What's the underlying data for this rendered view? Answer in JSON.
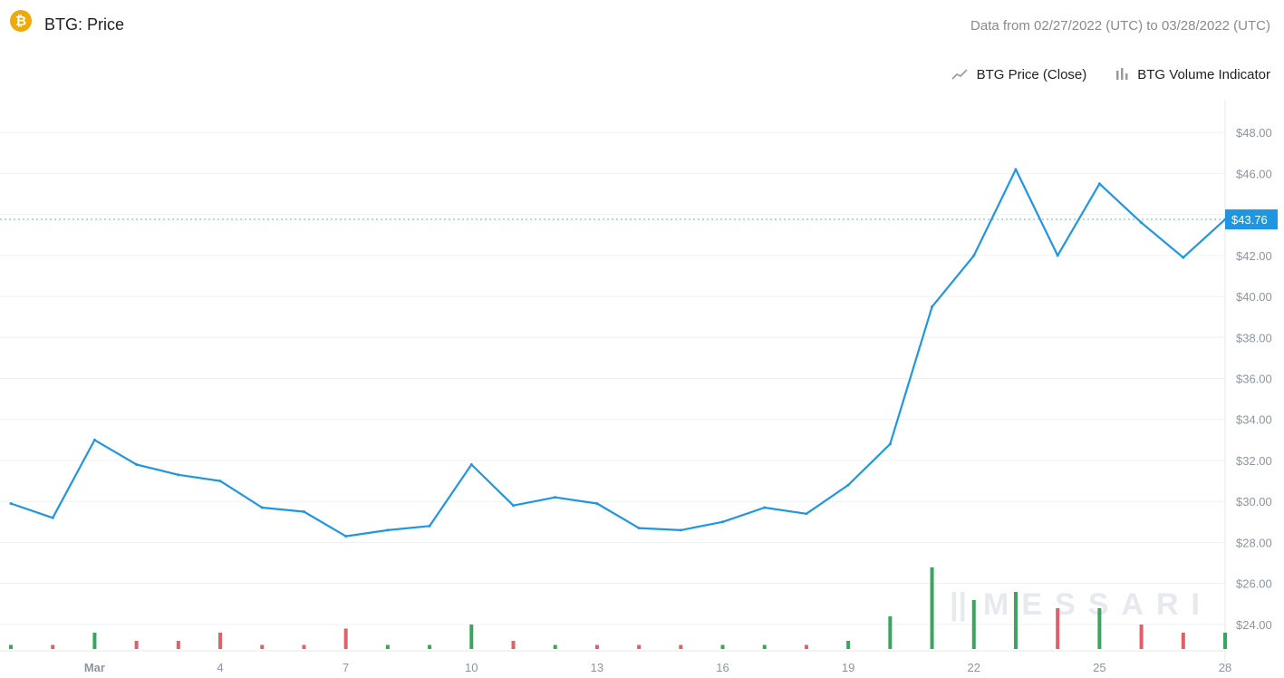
{
  "header": {
    "logo_icon": "bitcoin-gold-icon",
    "logo_glyph": "₿",
    "title": "BTG: Price",
    "date_range": "Data from 02/27/2022 (UTC) to 03/28/2022 (UTC)"
  },
  "legend": {
    "price_icon": "line-chart-icon",
    "price_label": "BTG Price (Close)",
    "volume_icon": "bar-chart-icon",
    "volume_label": "BTG Volume Indicator"
  },
  "watermark": {
    "mark": "||",
    "text": "MESSARI"
  },
  "colors": {
    "price_line": "#2196e0",
    "up_volume": "#3aa55d",
    "down_volume": "#e0606a",
    "grid": "#eef1f4",
    "axis_text": "#8b95a1"
  },
  "chart_data": {
    "type": "line",
    "title": "BTG: Price",
    "series": [
      {
        "name": "BTG Price (Close)",
        "x": [
          "2022-02-27",
          "2022-02-28",
          "2022-03-01",
          "2022-03-02",
          "2022-03-03",
          "2022-03-04",
          "2022-03-05",
          "2022-03-06",
          "2022-03-07",
          "2022-03-08",
          "2022-03-09",
          "2022-03-10",
          "2022-03-11",
          "2022-03-12",
          "2022-03-13",
          "2022-03-14",
          "2022-03-15",
          "2022-03-16",
          "2022-03-17",
          "2022-03-18",
          "2022-03-19",
          "2022-03-20",
          "2022-03-21",
          "2022-03-22",
          "2022-03-23",
          "2022-03-24",
          "2022-03-25",
          "2022-03-26",
          "2022-03-27",
          "2022-03-28"
        ],
        "values": [
          29.9,
          29.2,
          33.0,
          31.8,
          31.3,
          31.0,
          29.7,
          29.5,
          28.3,
          28.6,
          28.8,
          31.8,
          29.8,
          30.2,
          29.9,
          28.7,
          28.6,
          29.0,
          29.7,
          29.4,
          30.8,
          32.8,
          39.5,
          42.0,
          46.2,
          42.0,
          45.5,
          43.6,
          41.9,
          43.76
        ]
      },
      {
        "name": "BTG Volume Indicator",
        "x": [
          "2022-02-27",
          "2022-02-28",
          "2022-03-01",
          "2022-03-02",
          "2022-03-03",
          "2022-03-04",
          "2022-03-05",
          "2022-03-06",
          "2022-03-07",
          "2022-03-08",
          "2022-03-09",
          "2022-03-10",
          "2022-03-11",
          "2022-03-12",
          "2022-03-13",
          "2022-03-14",
          "2022-03-15",
          "2022-03-16",
          "2022-03-17",
          "2022-03-18",
          "2022-03-19",
          "2022-03-20",
          "2022-03-21",
          "2022-03-22",
          "2022-03-23",
          "2022-03-24",
          "2022-03-25",
          "2022-03-26",
          "2022-03-27",
          "2022-03-28"
        ],
        "values": [
          0.05,
          0.05,
          0.2,
          0.1,
          0.1,
          0.2,
          0.05,
          0.05,
          0.25,
          0.05,
          0.05,
          0.3,
          0.1,
          0.05,
          0.05,
          0.05,
          0.05,
          0.05,
          0.05,
          0.05,
          0.1,
          0.4,
          1.0,
          0.6,
          0.7,
          0.5,
          0.5,
          0.3,
          0.2,
          0.2
        ]
      }
    ],
    "last_price_label": "$43.76",
    "last_price": 43.76,
    "xtick_labels": [
      "Mar",
      "4",
      "7",
      "10",
      "13",
      "16",
      "19",
      "22",
      "25",
      "28"
    ],
    "xtick_dates": [
      "2022-03-01",
      "2022-03-04",
      "2022-03-07",
      "2022-03-10",
      "2022-03-13",
      "2022-03-16",
      "2022-03-19",
      "2022-03-22",
      "2022-03-25",
      "2022-03-28"
    ],
    "ytick_labels": [
      "$24.00",
      "$26.00",
      "$28.00",
      "$30.00",
      "$32.00",
      "$34.00",
      "$36.00",
      "$38.00",
      "$40.00",
      "$42.00",
      "$44.00",
      "$46.00",
      "$48.00"
    ],
    "ytick_values": [
      24,
      26,
      28,
      30,
      32,
      34,
      36,
      38,
      40,
      42,
      44,
      46,
      48
    ],
    "xlim": [
      "2022-02-27",
      "2022-03-28"
    ],
    "ylim": [
      22.8,
      49.6
    ],
    "grid": true,
    "legend_position": "top-right"
  }
}
